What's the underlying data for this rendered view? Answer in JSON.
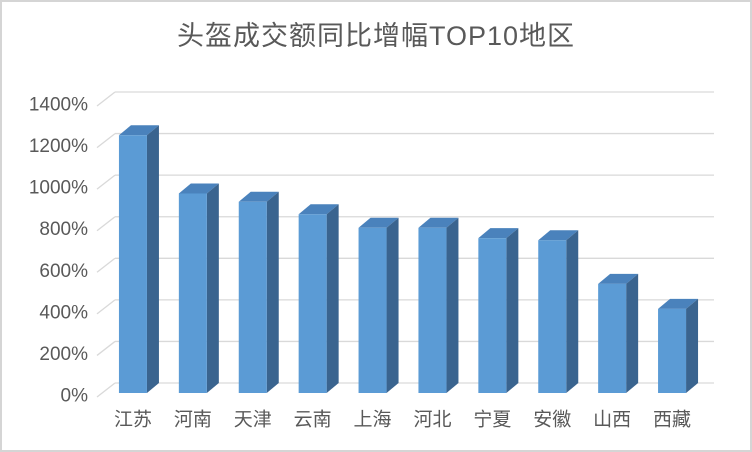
{
  "chart_data": {
    "type": "bar",
    "variant": "3d-clustered-column",
    "title": "头盔成交额同比增幅TOP10地区",
    "categories": [
      "江苏",
      "河南",
      "天津",
      "云南",
      "上海",
      "河北",
      "宁夏",
      "安徽",
      "山西",
      "西藏"
    ],
    "values": [
      1240,
      960,
      920,
      860,
      795,
      795,
      745,
      735,
      525,
      405
    ],
    "unit": "%",
    "xlabel": "",
    "ylabel": "",
    "ylim": [
      0,
      1400
    ],
    "ytick_step": 200,
    "ytick_labels": [
      "0%",
      "200%",
      "400%",
      "600%",
      "800%",
      "1000%",
      "1200%",
      "1400%"
    ],
    "grid": true,
    "legend_position": "none"
  },
  "colors": {
    "bar_front": "#5B9BD5",
    "bar_top": "#4A82BC",
    "bar_side": "#3A648F",
    "gridline": "#D9D9D9",
    "axis_text": "#595959",
    "title_text": "#595959",
    "background": "#FFFFFF",
    "frame_border": "#D5D5D5"
  }
}
